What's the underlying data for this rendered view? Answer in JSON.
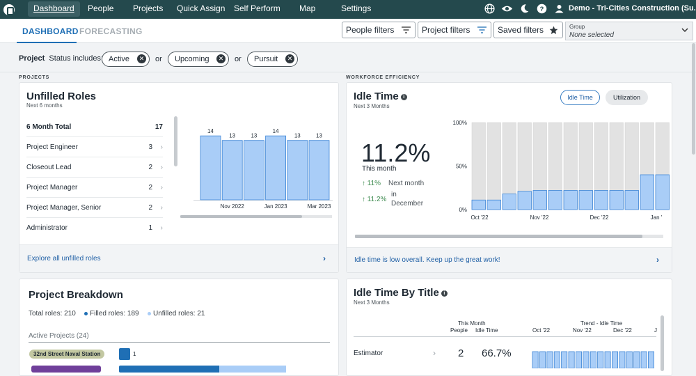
{
  "nav": {
    "items": [
      "Dashboard",
      "People",
      "Projects",
      "Quick Assign",
      "Self Perform",
      "Map",
      "Settings"
    ],
    "org": "Demo - Tri-Cities Construction (Su..."
  },
  "subnav": {
    "tabs": [
      "DASHBOARD",
      "FORECASTING"
    ],
    "people_filters": "People filters",
    "project_filters": "Project filters",
    "saved_filters": "Saved filters",
    "group_label": "Group",
    "group_value": "None selected"
  },
  "filter": {
    "label": "Project",
    "status_label": "Status includes:",
    "chips": [
      "Active",
      "Upcoming",
      "Pursuit"
    ],
    "or": "or"
  },
  "sections": {
    "projects": "PROJECTS",
    "workforce": "WORKFORCE EFFICIENCY"
  },
  "unfilled": {
    "title": "Unfilled Roles",
    "subtitle": "Next 6 months",
    "total_label": "6 Month Total",
    "total": "17",
    "roles": [
      {
        "name": "Project Engineer",
        "count": "3"
      },
      {
        "name": "Closeout Lead",
        "count": "2"
      },
      {
        "name": "Project Manager",
        "count": "2"
      },
      {
        "name": "Project Manager, Senior",
        "count": "2"
      },
      {
        "name": "Administrator",
        "count": "1"
      }
    ],
    "footer": "Explore all unfilled roles"
  },
  "idle": {
    "title": "Idle Time",
    "subtitle": "Next 3 Months",
    "toggle_idle": "Idle Time",
    "toggle_util": "Utilization",
    "value": "11.2%",
    "value_label": "This month",
    "next_month_val": "11%",
    "next_month_label": "Next month",
    "december_val": "11.2%",
    "december_label_1": "in",
    "december_label_2": "December",
    "footer": "Idle time is low overall. Keep up the great work!"
  },
  "breakdown": {
    "title": "Project Breakdown",
    "total": "Total roles: 210",
    "filled": "Filled roles: 189",
    "unfilled": "Unfilled roles: 21",
    "active": "Active Projects (24)",
    "project": "32nd Street Naval Station",
    "project_count": "1"
  },
  "idle_title": {
    "title": "Idle Time By Title",
    "subtitle": "Next 3 Months",
    "this_month": "This Month",
    "people": "People",
    "idle_time": "Idle Time",
    "trend": "Trend - Idle Time",
    "months": [
      "Oct '22",
      "Nov '22",
      "Dec '22",
      "J"
    ],
    "row_name": "Estimator",
    "row_people": "2",
    "row_idle": "66.7%"
  },
  "colors": {
    "nav": "#24494d",
    "bar": "#a9cdf7",
    "bar_stroke": "#3e86d6",
    "accent": "#1f6fb5"
  },
  "chart_data": [
    {
      "type": "bar",
      "categories": [
        "",
        "Nov 2022",
        "",
        "Jan 2023",
        "",
        "Mar 2023"
      ],
      "values": [
        14,
        13,
        13,
        14,
        13,
        13
      ],
      "title": "",
      "xlabel": "",
      "ylabel": ""
    },
    {
      "type": "bar",
      "x_ticks": [
        "Oct '22",
        "Nov '22",
        "Dec '22",
        "Jan '"
      ],
      "y_ticks": [
        "100%",
        "50%",
        "0%"
      ],
      "ylim": [
        0,
        100
      ],
      "values": [
        11,
        11,
        18,
        21,
        22,
        22,
        22,
        22,
        22,
        22,
        22,
        40,
        40
      ],
      "title": ""
    },
    {
      "type": "bar",
      "x_ticks": [
        "Oct '22",
        "Nov '22",
        "Dec '22",
        "J"
      ],
      "values": [
        50,
        50,
        50,
        50,
        50,
        50,
        50,
        50,
        50,
        50,
        50,
        50,
        50,
        50,
        50,
        50,
        50
      ]
    }
  ]
}
